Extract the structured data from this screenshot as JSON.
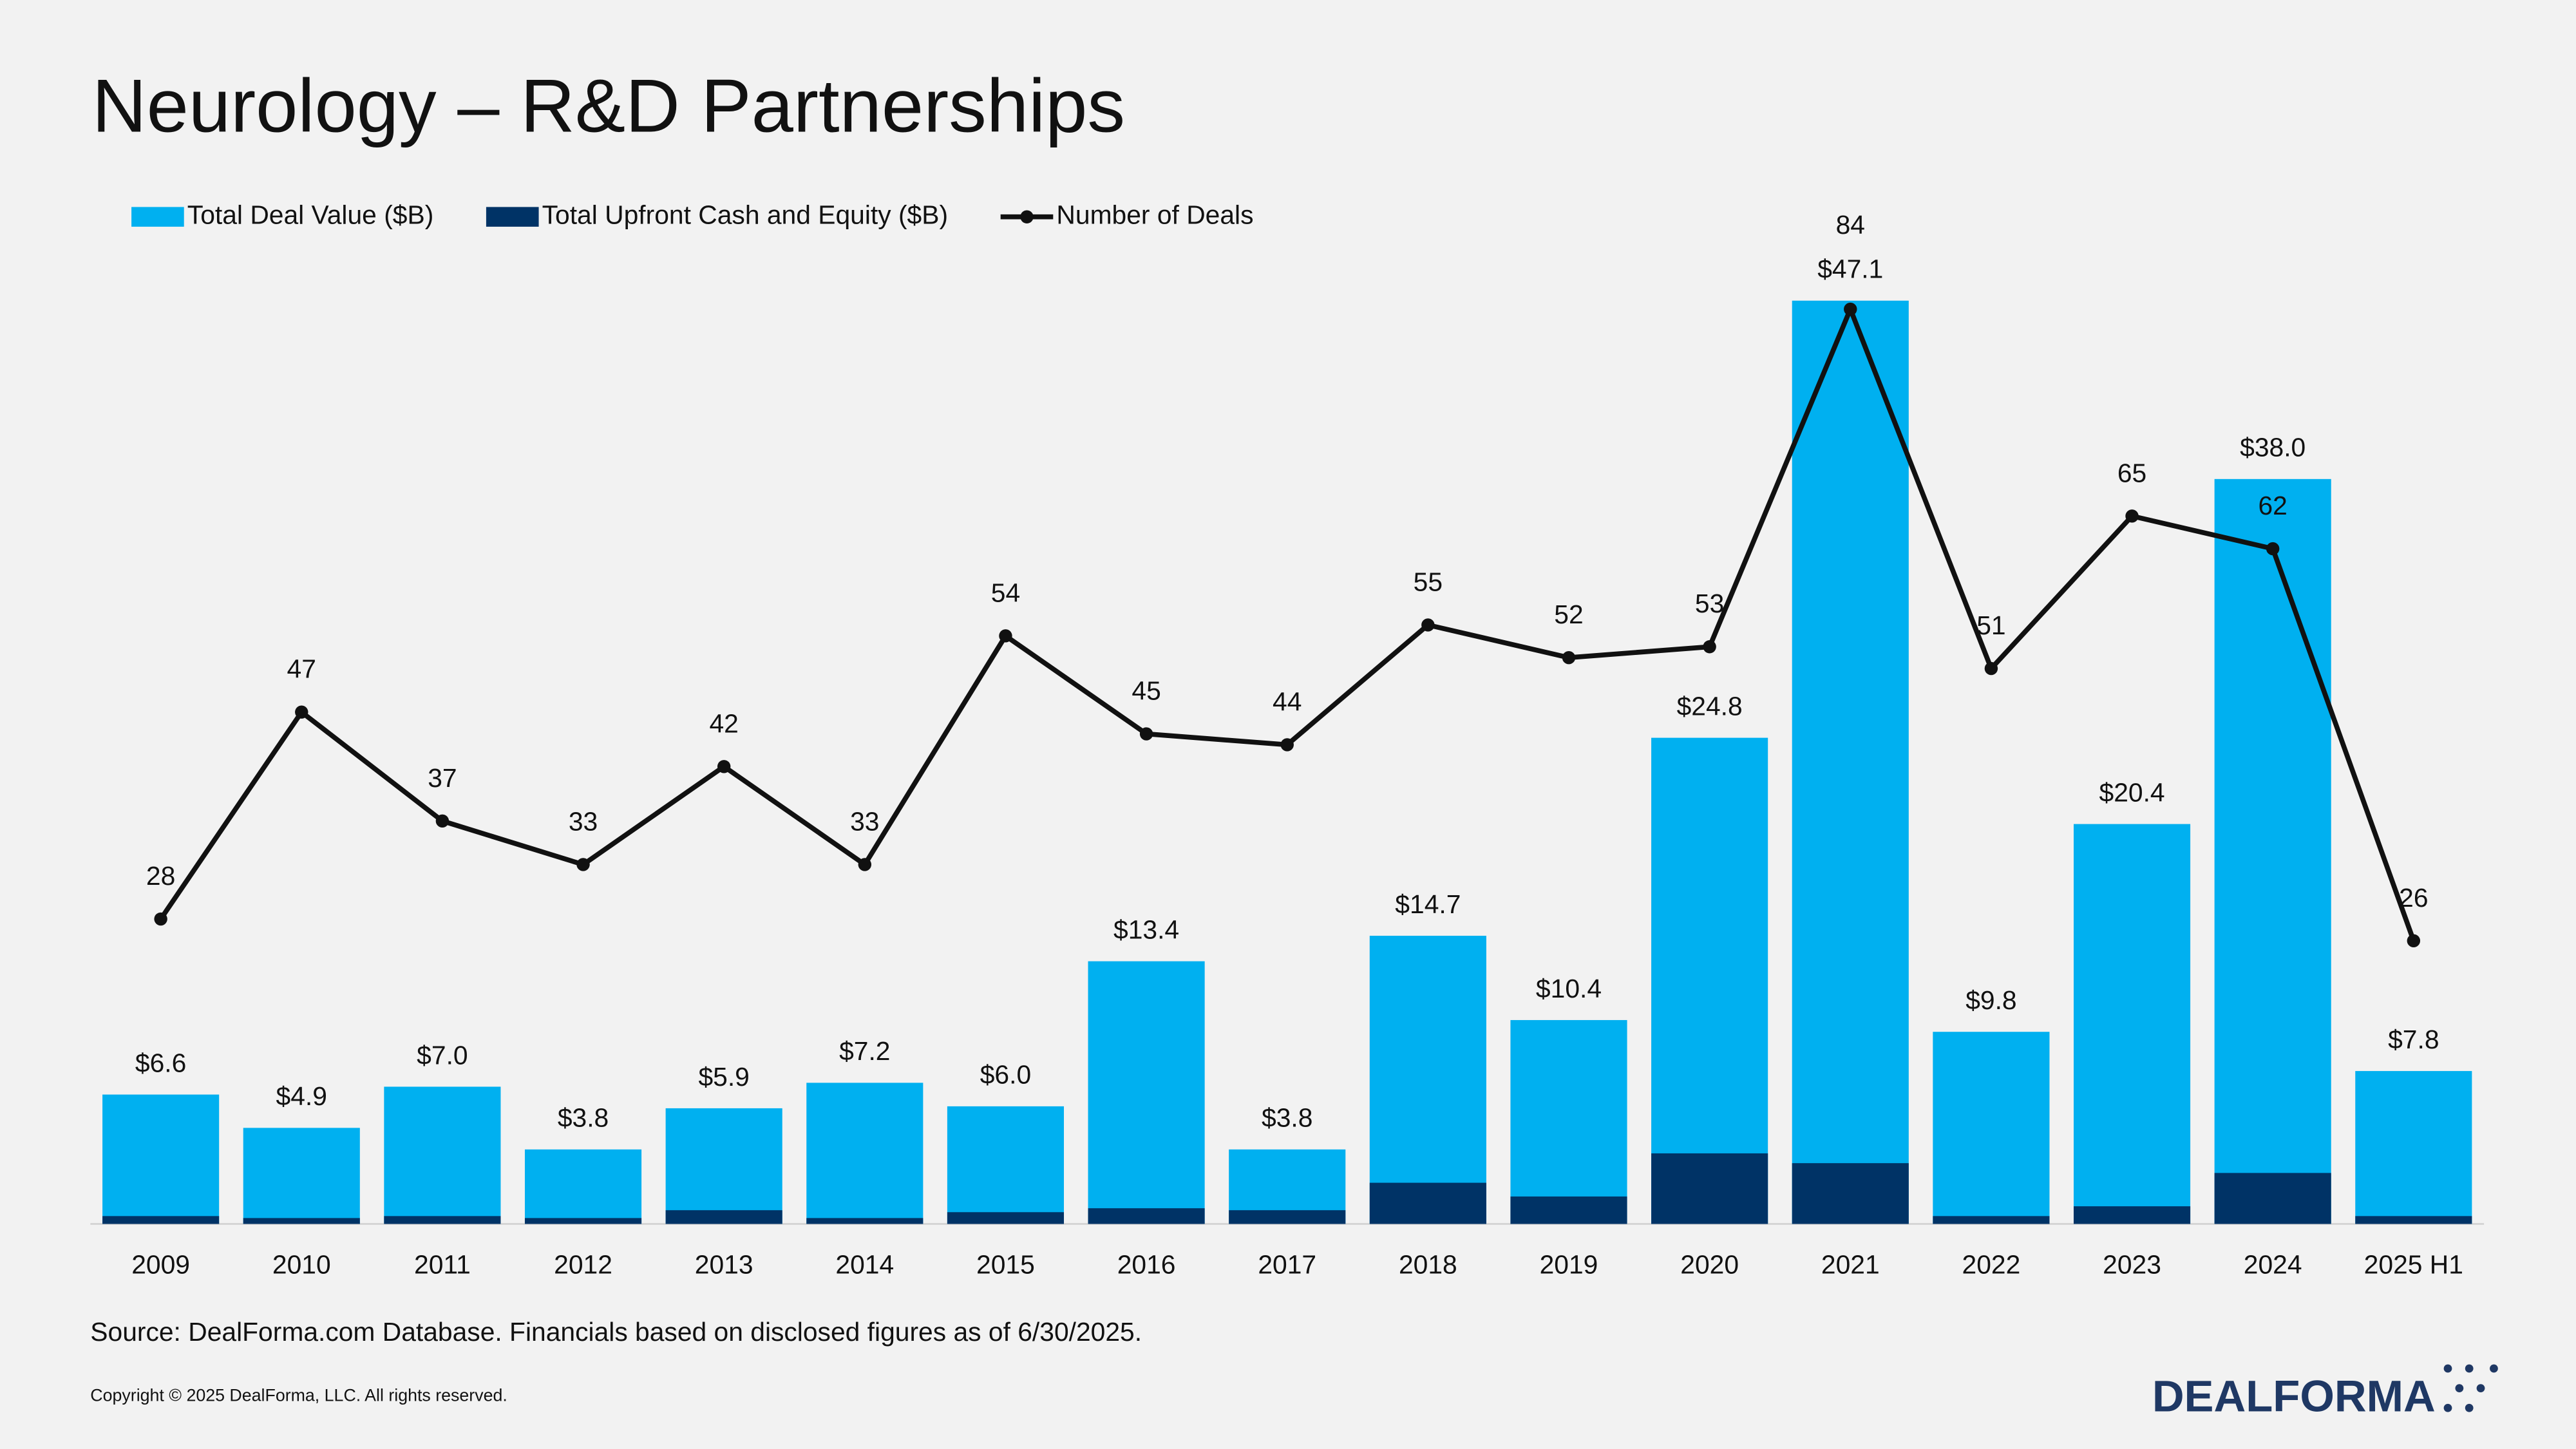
{
  "chart_data": {
    "type": "bar",
    "title": "Neurology – R&D Partnerships",
    "categories": [
      "2009",
      "2010",
      "2011",
      "2012",
      "2013",
      "2014",
      "2015",
      "2016",
      "2017",
      "2018",
      "2019",
      "2020",
      "2021",
      "2022",
      "2023",
      "2024",
      "2025 H1"
    ],
    "series": [
      {
        "name": "Total Deal Value ($B)",
        "color": "#00b0f0",
        "values": [
          6.6,
          4.9,
          7.0,
          3.8,
          5.9,
          7.2,
          6.0,
          13.4,
          3.8,
          14.7,
          10.4,
          24.8,
          47.1,
          9.8,
          20.4,
          38.0,
          7.8
        ],
        "value_labels": [
          "$6.6",
          "$4.9",
          "$7.0",
          "$3.8",
          "$5.9",
          "$7.2",
          "$6.0",
          "$13.4",
          "$3.8",
          "$14.7",
          "$10.4",
          "$24.8",
          "$47.1",
          "$9.8",
          "$20.4",
          "$38.0",
          "$7.8"
        ]
      },
      {
        "name": "Total Upfront Cash and Equity ($B)",
        "color": "#003366",
        "values": [
          0.4,
          0.3,
          0.4,
          0.3,
          0.7,
          0.3,
          0.6,
          0.8,
          0.7,
          2.1,
          1.4,
          3.6,
          3.1,
          0.4,
          0.9,
          2.6,
          0.4
        ]
      },
      {
        "name": "Number of Deals",
        "color": "#111111",
        "type": "line",
        "axis": "y2",
        "values": [
          28,
          47,
          37,
          33,
          42,
          33,
          54,
          45,
          44,
          55,
          52,
          53,
          84,
          51,
          65,
          62,
          26
        ]
      }
    ],
    "ylim": [
      0,
      50
    ],
    "y2lim": [
      0,
      90
    ],
    "grid": false,
    "source": "Source: DealForma.com Database. Financials based on disclosed figures as of 6/30/2025.",
    "copyright": "Copyright © 2025 DealForma, LLC. All rights reserved.",
    "logo": "DEALFORMA"
  }
}
